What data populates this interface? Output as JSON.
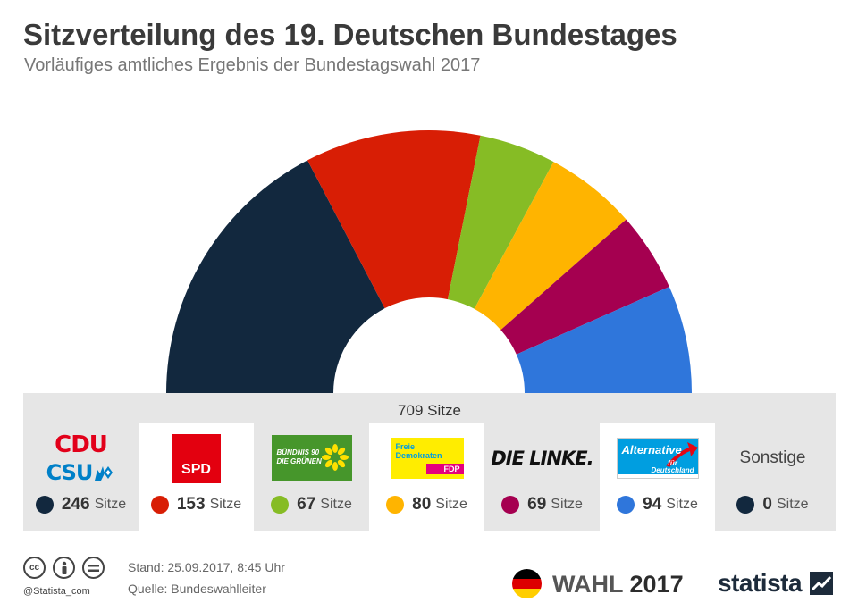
{
  "header": {
    "title": "Sitzverteilung des 19. Deutschen Bundestages",
    "subtitle": "Vorläufiges amtliches Ergebnis der Bundestagswahl 2017"
  },
  "chart_data": {
    "type": "pie",
    "variant": "parliament-half-donut",
    "total_label": "709 Sitze",
    "categories": [
      "CDU/CSU",
      "SPD",
      "Bündnis 90/Die Grünen",
      "FDP",
      "Die Linke",
      "AfD",
      "Sonstige"
    ],
    "values": [
      246,
      153,
      67,
      80,
      69,
      94,
      0
    ],
    "colors": [
      "#12283e",
      "#d81e05",
      "#86bc25",
      "#ffb400",
      "#a50050",
      "#2f76db",
      "#12283e"
    ],
    "unit": "Sitze"
  },
  "legend": {
    "unit_label": "Sitze",
    "items": [
      {
        "logo_text_1": "CDU",
        "logo_text_2": "CSU",
        "seats": "246"
      },
      {
        "logo_text_1": "SPD",
        "seats": "153"
      },
      {
        "logo_text_1": "BÜNDNIS 90\nDIE GRÜNEN",
        "seats": "67"
      },
      {
        "logo_text_1": "Freie\nDemokraten",
        "logo_text_2": "FDP",
        "seats": "80"
      },
      {
        "logo_text_1": "DIE LINKE.",
        "seats": "69"
      },
      {
        "logo_text_1": "Alternative",
        "logo_text_2": "für\nDeutschland",
        "seats": "94"
      },
      {
        "logo_text_1": "Sonstige",
        "seats": "0"
      }
    ]
  },
  "footer": {
    "cc_icons": [
      "cc-icon",
      "by-icon",
      "nd-icon"
    ],
    "cc_label": "cc",
    "handle": "@Statista_com",
    "stand": "Stand: 25.09.2017, 8:45 Uhr",
    "quelle": "Quelle: Bundeswahlleiter",
    "wahl_label": "WAHL",
    "wahl_year": "2017",
    "brand": "statista",
    "flag_colors": [
      "#000000",
      "#dd0000",
      "#ffce00"
    ]
  }
}
